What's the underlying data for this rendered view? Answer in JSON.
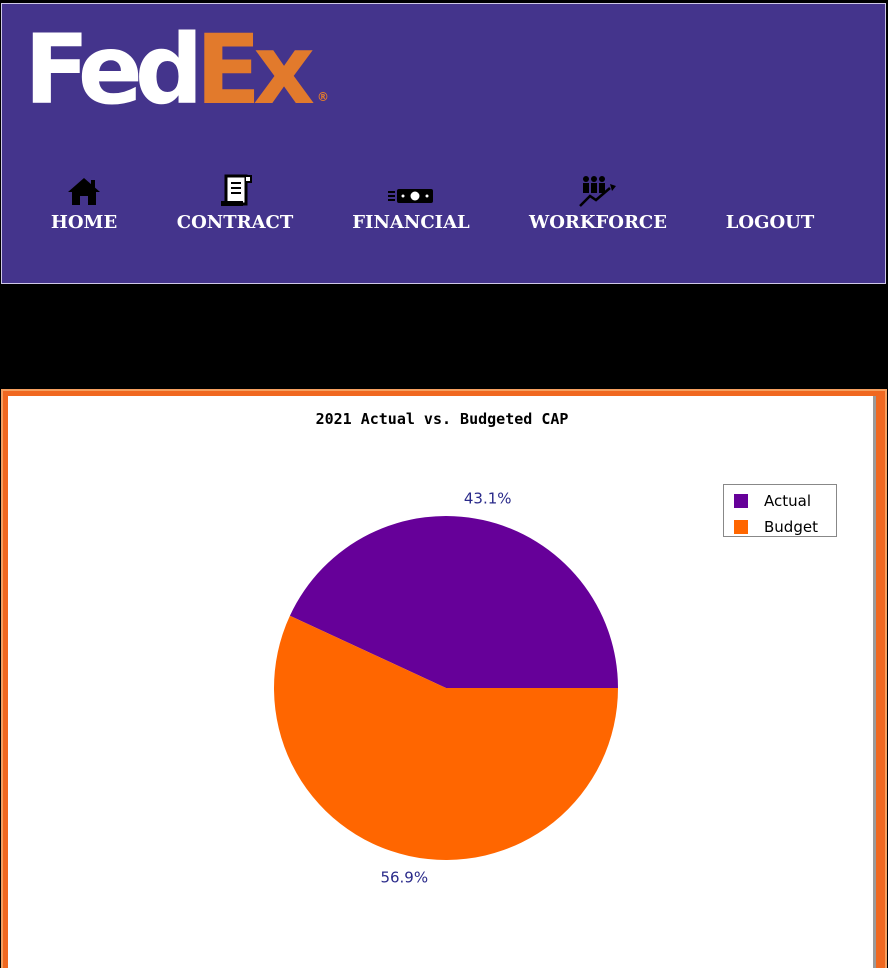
{
  "header": {
    "logo": {
      "part1": "Fed",
      "part2": "Ex",
      "reg": "®"
    },
    "colors": {
      "background": "#44348c",
      "logo_fed": "#ffffff",
      "logo_ex": "#e27a2c"
    }
  },
  "nav": [
    {
      "label": "HOME",
      "icon": "home-icon"
    },
    {
      "label": "CONTRACT",
      "icon": "document-icon"
    },
    {
      "label": "FINANCIAL",
      "icon": "money-icon"
    },
    {
      "label": "WORKFORCE",
      "icon": "people-chart-icon"
    },
    {
      "label": "LOGOUT",
      "icon": ""
    }
  ],
  "chart_data": {
    "type": "pie",
    "title": "2021 Actual vs. Budgeted CAP",
    "legend_position": "top-right",
    "slices": [
      {
        "name": "Actual",
        "value": 43.1,
        "label": "43.1%",
        "color": "#660099"
      },
      {
        "name": "Budget",
        "value": 56.9,
        "label": "56.9%",
        "color": "#ff6600"
      }
    ]
  }
}
